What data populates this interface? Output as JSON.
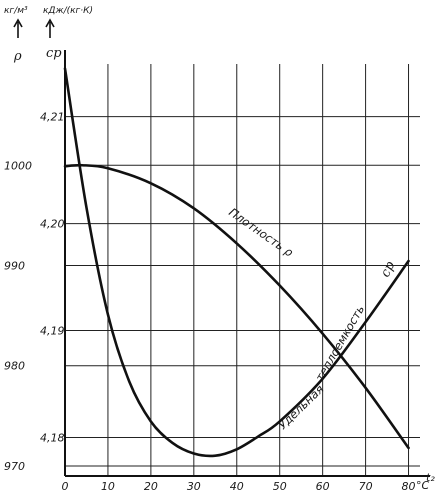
{
  "chart_data": {
    "type": "line",
    "x_axis": {
      "ticks": [
        "0",
        "10",
        "20",
        "30",
        "40",
        "50",
        "60",
        "70",
        "80"
      ],
      "unit": "°C",
      "extra_label": "t₂",
      "range": [
        0,
        85
      ]
    },
    "y_axis_left": {
      "symbol": "ρ",
      "unit": "кг/м³",
      "ticks": [
        "970",
        "980",
        "990",
        "1000"
      ],
      "range": [
        969,
        1010.5
      ]
    },
    "y_axis_inner": {
      "symbol": "cp",
      "unit": "кДж/(кг·К)",
      "ticks": [
        "4,18",
        "4,19",
        "4,20",
        "4,21"
      ],
      "range": [
        4.1764,
        4.2153
      ]
    },
    "series": [
      {
        "name": "Плотность ρ",
        "axis": "left",
        "x": [
          0,
          4,
          10,
          20,
          30,
          40,
          50,
          60,
          70,
          80
        ],
        "y": [
          999.9,
          1000.0,
          999.7,
          998.2,
          995.7,
          992.2,
          988.0,
          983.2,
          977.8,
          971.8
        ]
      },
      {
        "name": "Удельная теплоемкость cp",
        "axis": "inner",
        "x": [
          0,
          5,
          10,
          15,
          20,
          25,
          30,
          35,
          40,
          45,
          50,
          60,
          70,
          80
        ],
        "y": [
          4.2145,
          4.2015,
          4.1915,
          4.1852,
          4.1815,
          4.1795,
          4.1785,
          4.1783,
          4.1789,
          4.1801,
          4.1815,
          4.1855,
          4.1908,
          4.1965
        ]
      }
    ],
    "labels": {
      "density": "Плотность ρ",
      "heat_word1": "Удельная",
      "heat_word2": "теплоемкость",
      "heat_sym": "cp"
    }
  }
}
